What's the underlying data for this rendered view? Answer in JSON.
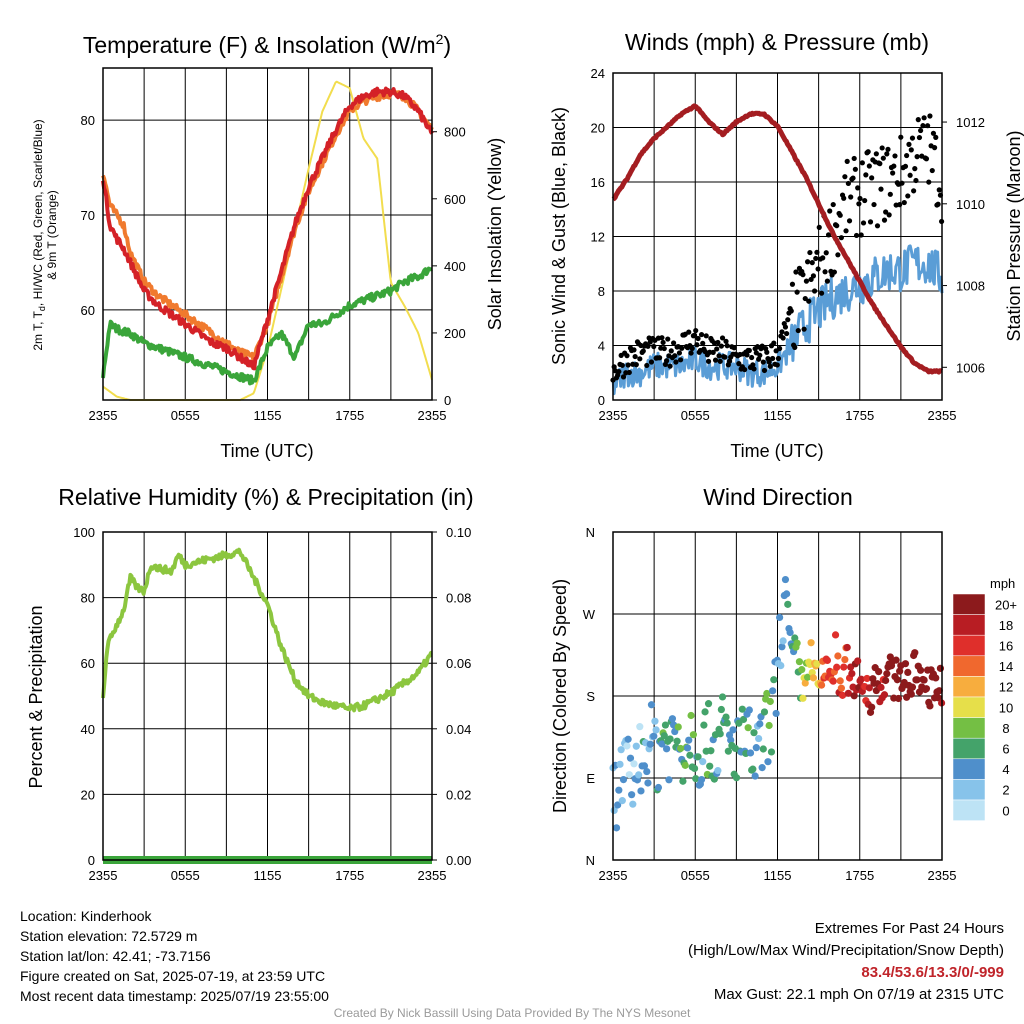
{
  "colors": {
    "red": "#d42127",
    "green": "#3aa53a",
    "orange": "#f07a2e",
    "yellow": "#f2dd4e",
    "maroon": "#a41d21",
    "blue": "#5a9dd6",
    "black": "#000000",
    "lightgreen": "#8cc63f",
    "precip": "#3aa53a"
  },
  "chart_data": [
    {
      "id": "temp",
      "type": "line",
      "title": "Temperature (F) & Insolation (W/m",
      "title_sup": "2",
      "title_end": ")",
      "xlabel": "Time (UTC)",
      "ylabel_lines": [
        "2m T, T",
        "d",
        ", HI/WC (Red, Green, Scarlet/Blue)",
        "& 9m T (Orange)"
      ],
      "y2label": "Solar Insolation (Yellow)",
      "x_ticks": [
        "2355",
        "0555",
        "1155",
        "1755",
        "2355"
      ],
      "xlim": [
        0,
        24
      ],
      "ylim": [
        50.5,
        85.5
      ],
      "y_ticks": [
        60,
        70,
        80
      ],
      "y2lim": [
        0,
        990
      ],
      "y2_ticks": [
        0,
        200,
        400,
        600,
        800
      ],
      "series": [
        {
          "key": "temp_2m",
          "color_key": "red",
          "x": [
            0,
            0.5,
            1,
            1.5,
            2,
            3,
            4,
            5,
            6,
            7,
            8,
            9,
            10,
            11,
            12,
            13,
            14,
            15,
            16,
            17,
            18,
            19,
            20,
            21,
            22,
            23,
            24
          ],
          "y": [
            74,
            69,
            67.5,
            66.5,
            65,
            62,
            60.5,
            59.5,
            58.5,
            57.5,
            56.5,
            56,
            55,
            54,
            59,
            64,
            69,
            73,
            76,
            79,
            81.5,
            82.5,
            83,
            83,
            82.5,
            81,
            78.5
          ]
        },
        {
          "key": "temp_9m",
          "color_key": "orange",
          "x": [
            0,
            0.5,
            1,
            1.5,
            2,
            3,
            4,
            5,
            6,
            7,
            8,
            9,
            10,
            11,
            12,
            13,
            14,
            15,
            16,
            17,
            18,
            19,
            20,
            21,
            22,
            23,
            24
          ],
          "y": [
            74.5,
            71,
            70,
            69,
            66,
            63,
            61.5,
            60.5,
            59.5,
            58.5,
            57.5,
            56.5,
            55.5,
            55,
            58.5,
            63.5,
            68.5,
            72.5,
            75.5,
            78.5,
            81,
            82,
            82.5,
            82.8,
            82.5,
            81,
            79
          ]
        },
        {
          "key": "dewpoint",
          "color_key": "green",
          "x": [
            0,
            0.5,
            1,
            2,
            3,
            4,
            5,
            6,
            7,
            8,
            9,
            10,
            11,
            12,
            13,
            14,
            15,
            16,
            17,
            18,
            19,
            20,
            21,
            22,
            23,
            24
          ],
          "y": [
            53,
            58.5,
            58,
            57.5,
            56.5,
            56,
            55.5,
            55,
            54.5,
            54,
            53.5,
            53,
            52.5,
            56,
            57.5,
            55,
            58.5,
            58.5,
            59.5,
            60.5,
            61,
            61.5,
            62,
            63,
            63.5,
            64.5
          ]
        },
        {
          "key": "insolation",
          "color_key": "yellow",
          "axis": "y2",
          "x": [
            0,
            1,
            2,
            3,
            4,
            5,
            6,
            7,
            8,
            9,
            10,
            11,
            12,
            13,
            14,
            15,
            16,
            17,
            18,
            19,
            20,
            21,
            22,
            23,
            24
          ],
          "y": [
            40,
            10,
            0,
            0,
            0,
            0,
            0,
            0,
            0,
            0,
            0,
            20,
            150,
            330,
            510,
            690,
            860,
            950,
            930,
            780,
            720,
            350,
            280,
            200,
            60
          ]
        }
      ]
    },
    {
      "id": "winds",
      "type": "line",
      "title": "Winds (mph) & Pressure (mb)",
      "xlabel": "Time (UTC)",
      "ylabel": "Sonic Wind & Gust (Blue, Black)",
      "y2label": "Station Pressure (Maroon)",
      "x_ticks": [
        "2355",
        "0555",
        "1155",
        "1755",
        "2355"
      ],
      "xlim": [
        0,
        24
      ],
      "ylim": [
        0,
        24
      ],
      "y_ticks": [
        0,
        4,
        8,
        12,
        16,
        20,
        24
      ],
      "y2lim": [
        1005.2,
        1013.2
      ],
      "y2_ticks": [
        1006,
        1008,
        1010,
        1012
      ],
      "series": [
        {
          "key": "wind",
          "color_key": "blue",
          "x": [
            0,
            1,
            2,
            3,
            4,
            5,
            6,
            7,
            8,
            9,
            10,
            11,
            12,
            13,
            14,
            15,
            16,
            17,
            18,
            19,
            20,
            21,
            22,
            23,
            24
          ],
          "y": [
            1,
            2,
            2,
            2.5,
            2.5,
            2.5,
            3,
            2.5,
            2.5,
            2.5,
            2,
            2,
            2.5,
            4,
            5.5,
            6.5,
            7.5,
            8,
            8.5,
            9,
            9.5,
            9.5,
            10,
            10,
            9
          ]
        },
        {
          "key": "gust",
          "color_key": "black",
          "style": "dots",
          "x": [
            0,
            1,
            2,
            3,
            4,
            5,
            6,
            7,
            8,
            9,
            10,
            11,
            12,
            13,
            14,
            15,
            16,
            17,
            18,
            19,
            20,
            21,
            22,
            23,
            24
          ],
          "y": [
            2,
            3,
            3.5,
            3.5,
            3.5,
            4,
            4.5,
            3.5,
            3.5,
            3,
            3,
            3,
            3.5,
            6,
            7.5,
            10,
            12,
            14.5,
            15,
            15.5,
            16,
            16.5,
            18,
            18.5,
            16
          ]
        },
        {
          "key": "pressure",
          "color_key": "maroon",
          "axis": "y2",
          "x": [
            0,
            1,
            2,
            3,
            4,
            5,
            6,
            7,
            8,
            9,
            10,
            11,
            12,
            13,
            14,
            15,
            16,
            17,
            18,
            19,
            20,
            21,
            22,
            23,
            24
          ],
          "y": [
            1010.1,
            1010.6,
            1011.2,
            1011.6,
            1011.9,
            1012.2,
            1012.4,
            1012.0,
            1011.7,
            1012.0,
            1012.2,
            1012.2,
            1011.9,
            1011.3,
            1010.7,
            1010.0,
            1009.3,
            1008.7,
            1008.1,
            1007.5,
            1007.0,
            1006.5,
            1006.1,
            1005.9,
            1005.9
          ]
        }
      ]
    },
    {
      "id": "rh",
      "type": "line",
      "title": "Relative Humidity (%) & Precipitation (in)",
      "ylabel": "Percent & Precipitation",
      "x_ticks": [
        "2355",
        "0555",
        "1155",
        "1755",
        "2355"
      ],
      "xlim": [
        0,
        24
      ],
      "ylim": [
        0,
        100
      ],
      "y_ticks": [
        0,
        20,
        40,
        60,
        80,
        100
      ],
      "y2lim": [
        0,
        0.1
      ],
      "y2_ticks": [
        "0.00",
        "0.02",
        "0.04",
        "0.06",
        "0.08",
        "0.10"
      ],
      "series": [
        {
          "key": "rh",
          "color_key": "lightgreen",
          "x": [
            0,
            0.3,
            0.8,
            1.5,
            2,
            2.5,
            3,
            3.5,
            4,
            5,
            5.5,
            6,
            7,
            8,
            9,
            10,
            11,
            12,
            13,
            14,
            15,
            16,
            17,
            18,
            19,
            20,
            21,
            22,
            23,
            24
          ],
          "y": [
            49,
            65,
            70,
            76,
            86,
            83,
            82,
            90,
            89,
            88,
            93,
            90,
            91,
            92,
            93,
            94,
            86,
            78,
            65,
            55,
            50,
            48,
            47,
            46,
            47,
            49,
            51,
            54,
            57,
            63
          ]
        },
        {
          "key": "precip",
          "color_key": "precip",
          "axis": "y2",
          "x": [
            0,
            24
          ],
          "y": [
            0,
            0
          ]
        }
      ]
    },
    {
      "id": "wdir",
      "type": "scatter",
      "title": "Wind Direction",
      "ylabel": "Direction (Colored By Speed)",
      "x_ticks": [
        "2355",
        "0555",
        "1155",
        "1755",
        "2355"
      ],
      "xlim": [
        0,
        24
      ],
      "ylim": [
        0,
        4
      ],
      "y_tick_labels": [
        "N",
        "E",
        "S",
        "W",
        "N"
      ],
      "colorbar_title": "mph",
      "colorbar_labels": [
        "0",
        "2",
        "4",
        "6",
        "8",
        "10",
        "12",
        "14",
        "16",
        "18",
        "20+"
      ],
      "colorbar_colors": [
        "#bde3f5",
        "#87c3ea",
        "#4f8fcb",
        "#44a36a",
        "#74bf44",
        "#e6df4a",
        "#f7ad3e",
        "#f0682e",
        "#df2f2b",
        "#b81d23",
        "#8c1a1c"
      ],
      "points_coarse": {
        "x": [
          0.2,
          0.5,
          1,
          1.3,
          1.8,
          2.2,
          2.6,
          3,
          3.3,
          3.6,
          4,
          4.4,
          4.8,
          5.2,
          5.6,
          6,
          6.4,
          6.8,
          7.2,
          7.6,
          8,
          8.4,
          8.8,
          9.2,
          9.6,
          10,
          10.4,
          10.8,
          11.2,
          11.6,
          12,
          12.3,
          12.6,
          13,
          13.3,
          13.6,
          14,
          14.3,
          14.6,
          15,
          15.3,
          15.6,
          16,
          16.3,
          16.6,
          17,
          17.3,
          17.6,
          18,
          18.4,
          18.8,
          19.2,
          19.6,
          20,
          20.4,
          20.8,
          21.2,
          21.6,
          22,
          22.4,
          22.8,
          23.2,
          23.6,
          24
        ],
        "y": [
          0.8,
          1.0,
          1.1,
          0.9,
          1.2,
          1.3,
          1.4,
          1.5,
          1.2,
          1.6,
          1.4,
          1.5,
          1.5,
          1.3,
          1.6,
          1.4,
          1.3,
          1.5,
          1.4,
          1.4,
          1.6,
          1.4,
          1.3,
          1.5,
          1.4,
          1.4,
          1.2,
          1.4,
          1.6,
          1.7,
          2.3,
          2.9,
          3.3,
          2.4,
          2.6,
          2.2,
          2.1,
          2.6,
          2.3,
          2.1,
          2.2,
          2.4,
          2.2,
          2.6,
          1.9,
          2.5,
          2.1,
          2.2,
          2.3,
          2.1,
          2.0,
          2.3,
          2.1,
          2.3,
          2.2,
          2.2,
          2.3,
          2.1,
          2.3,
          2.2,
          2.2,
          2.1,
          2.2,
          2.1
        ],
        "speed": [
          1,
          1,
          1,
          1,
          1,
          2,
          2,
          2,
          2,
          3,
          3,
          2,
          3,
          3,
          3,
          3,
          2,
          3,
          3,
          2,
          3,
          3,
          3,
          2,
          3,
          3,
          2,
          2,
          3,
          3,
          2,
          2,
          2,
          3,
          3,
          4,
          5,
          5,
          6,
          6,
          7,
          8,
          7,
          8,
          8,
          8,
          9,
          10,
          9,
          8,
          10,
          10,
          9,
          10,
          10,
          11,
          11,
          10,
          11,
          11,
          12,
          12,
          11,
          10
        ]
      }
    }
  ],
  "info_left": {
    "location": "Location: Kinderhook",
    "elevation": "Station elevation: 72.5729 m",
    "latlon": "Station lat/lon: 42.41; -73.7156",
    "created": "Figure created on Sat, 2025-07-19, at 23:59 UTC",
    "recent": "Most recent data timestamp: 2025/07/19 23:55:00"
  },
  "info_right": {
    "line1": "Extremes For Past 24 Hours",
    "line2": "(High/Low/Max Wind/Precipitation/Snow Depth)",
    "values": "83.4/53.6/13.3/0/-999",
    "gust": "Max Gust: 22.1 mph On 07/19 at 2315 UTC"
  },
  "credit": "Created By Nick Bassill Using Data Provided By The NYS Mesonet"
}
